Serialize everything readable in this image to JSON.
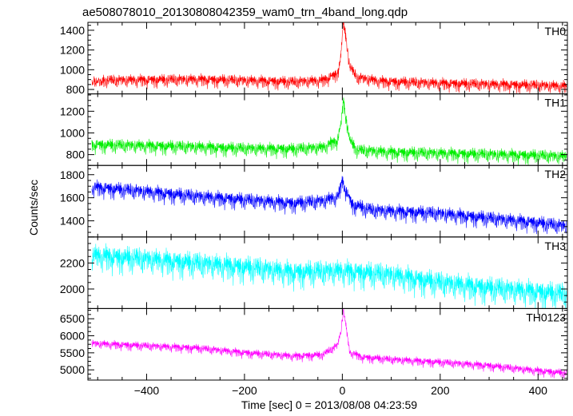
{
  "chart_data": {
    "type": "line",
    "title": "ae508078010_20130808042359_wam0_trn_4band_long.qdp",
    "xlabel": "Time [sec] 0 = 2013/08/08 04:23:59",
    "ylabel": "Counts/sec",
    "xlim": [
      -520,
      460
    ],
    "data_x_range": [
      -512,
      458
    ],
    "xticks": [
      -400,
      -200,
      0,
      200,
      400
    ],
    "grid": false,
    "series": [
      {
        "name": "TH0",
        "color": "#ff0000",
        "ylim": [
          755,
          1480
        ],
        "yticks": [
          800,
          1000,
          1200,
          1400
        ],
        "noise_std": 35,
        "profile": [
          [
            -512,
            880
          ],
          [
            -400,
            885
          ],
          [
            -300,
            890
          ],
          [
            -200,
            880
          ],
          [
            -100,
            865
          ],
          [
            -40,
            880
          ],
          [
            -10,
            950
          ],
          [
            -3,
            1120
          ],
          [
            2,
            1470
          ],
          [
            8,
            1300
          ],
          [
            15,
            1020
          ],
          [
            30,
            910
          ],
          [
            80,
            870
          ],
          [
            200,
            850
          ],
          [
            300,
            840
          ],
          [
            400,
            830
          ],
          [
            458,
            820
          ]
        ]
      },
      {
        "name": "TH1",
        "color": "#00ee00",
        "ylim": [
          700,
          1360
        ],
        "yticks": [
          800,
          1000,
          1200
        ],
        "noise_std": 35,
        "profile": [
          [
            -512,
            880
          ],
          [
            -400,
            870
          ],
          [
            -300,
            860
          ],
          [
            -200,
            845
          ],
          [
            -100,
            840
          ],
          [
            -40,
            855
          ],
          [
            -10,
            920
          ],
          [
            -3,
            1060
          ],
          [
            2,
            1290
          ],
          [
            8,
            1120
          ],
          [
            15,
            920
          ],
          [
            30,
            830
          ],
          [
            100,
            810
          ],
          [
            200,
            800
          ],
          [
            300,
            790
          ],
          [
            400,
            780
          ],
          [
            458,
            770
          ]
        ]
      },
      {
        "name": "TH2",
        "color": "#0000ff",
        "ylim": [
          1260,
          1880
        ],
        "yticks": [
          1400,
          1600,
          1800
        ],
        "noise_std": 38,
        "profile": [
          [
            -512,
            1680
          ],
          [
            -400,
            1640
          ],
          [
            -300,
            1600
          ],
          [
            -200,
            1570
          ],
          [
            -100,
            1540
          ],
          [
            -40,
            1560
          ],
          [
            -8,
            1600
          ],
          [
            0,
            1740
          ],
          [
            8,
            1640
          ],
          [
            20,
            1530
          ],
          [
            60,
            1480
          ],
          [
            200,
            1450
          ],
          [
            300,
            1410
          ],
          [
            400,
            1370
          ],
          [
            458,
            1340
          ]
        ]
      },
      {
        "name": "TH3",
        "color": "#00ffff",
        "ylim": [
          1850,
          2400
        ],
        "yticks": [
          2000,
          2200
        ],
        "noise_std": 55,
        "profile": [
          [
            -512,
            2240
          ],
          [
            -400,
            2210
          ],
          [
            -300,
            2180
          ],
          [
            -200,
            2150
          ],
          [
            -100,
            2110
          ],
          [
            0,
            2120
          ],
          [
            100,
            2090
          ],
          [
            200,
            2030
          ],
          [
            300,
            1990
          ],
          [
            400,
            1960
          ],
          [
            458,
            1940
          ]
        ]
      },
      {
        "name": "TH0123",
        "color": "#ff00ff",
        "ylim": [
          4700,
          6800
        ],
        "yticks": [
          5000,
          5500,
          6000,
          6500
        ],
        "noise_std": 70,
        "profile": [
          [
            -512,
            5750
          ],
          [
            -400,
            5680
          ],
          [
            -300,
            5620
          ],
          [
            -200,
            5480
          ],
          [
            -100,
            5380
          ],
          [
            -40,
            5420
          ],
          [
            -10,
            5700
          ],
          [
            -3,
            6100
          ],
          [
            2,
            6750
          ],
          [
            8,
            6200
          ],
          [
            15,
            5500
          ],
          [
            40,
            5350
          ],
          [
            100,
            5280
          ],
          [
            200,
            5200
          ],
          [
            300,
            5100
          ],
          [
            400,
            4950
          ],
          [
            458,
            4880
          ]
        ]
      }
    ]
  }
}
